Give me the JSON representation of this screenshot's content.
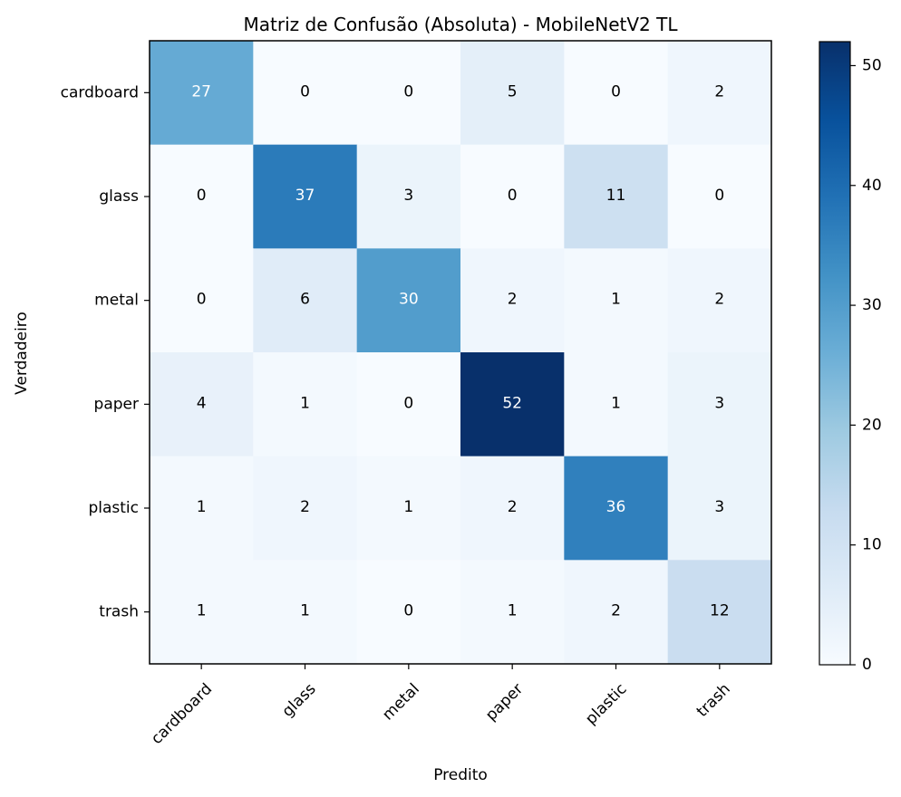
{
  "chart_data": {
    "type": "heatmap",
    "title": "Matriz de Confusão (Absoluta) - MobileNetV2 TL",
    "xlabel": "Predito",
    "ylabel": "Verdadeiro",
    "x_categories": [
      "cardboard",
      "glass",
      "metal",
      "paper",
      "plastic",
      "trash"
    ],
    "y_categories": [
      "cardboard",
      "glass",
      "metal",
      "paper",
      "plastic",
      "trash"
    ],
    "values": [
      [
        27,
        0,
        0,
        5,
        0,
        2
      ],
      [
        0,
        37,
        3,
        0,
        11,
        0
      ],
      [
        0,
        6,
        30,
        2,
        1,
        2
      ],
      [
        4,
        1,
        0,
        52,
        1,
        3
      ],
      [
        1,
        2,
        1,
        2,
        36,
        3
      ],
      [
        1,
        1,
        0,
        1,
        2,
        12
      ]
    ],
    "colormap": "Blues",
    "colorbar": {
      "range": [
        0,
        52
      ],
      "ticks": [
        "0",
        "10",
        "20",
        "30",
        "40",
        "50"
      ]
    },
    "grid": false,
    "legend": "colorbar-right"
  }
}
